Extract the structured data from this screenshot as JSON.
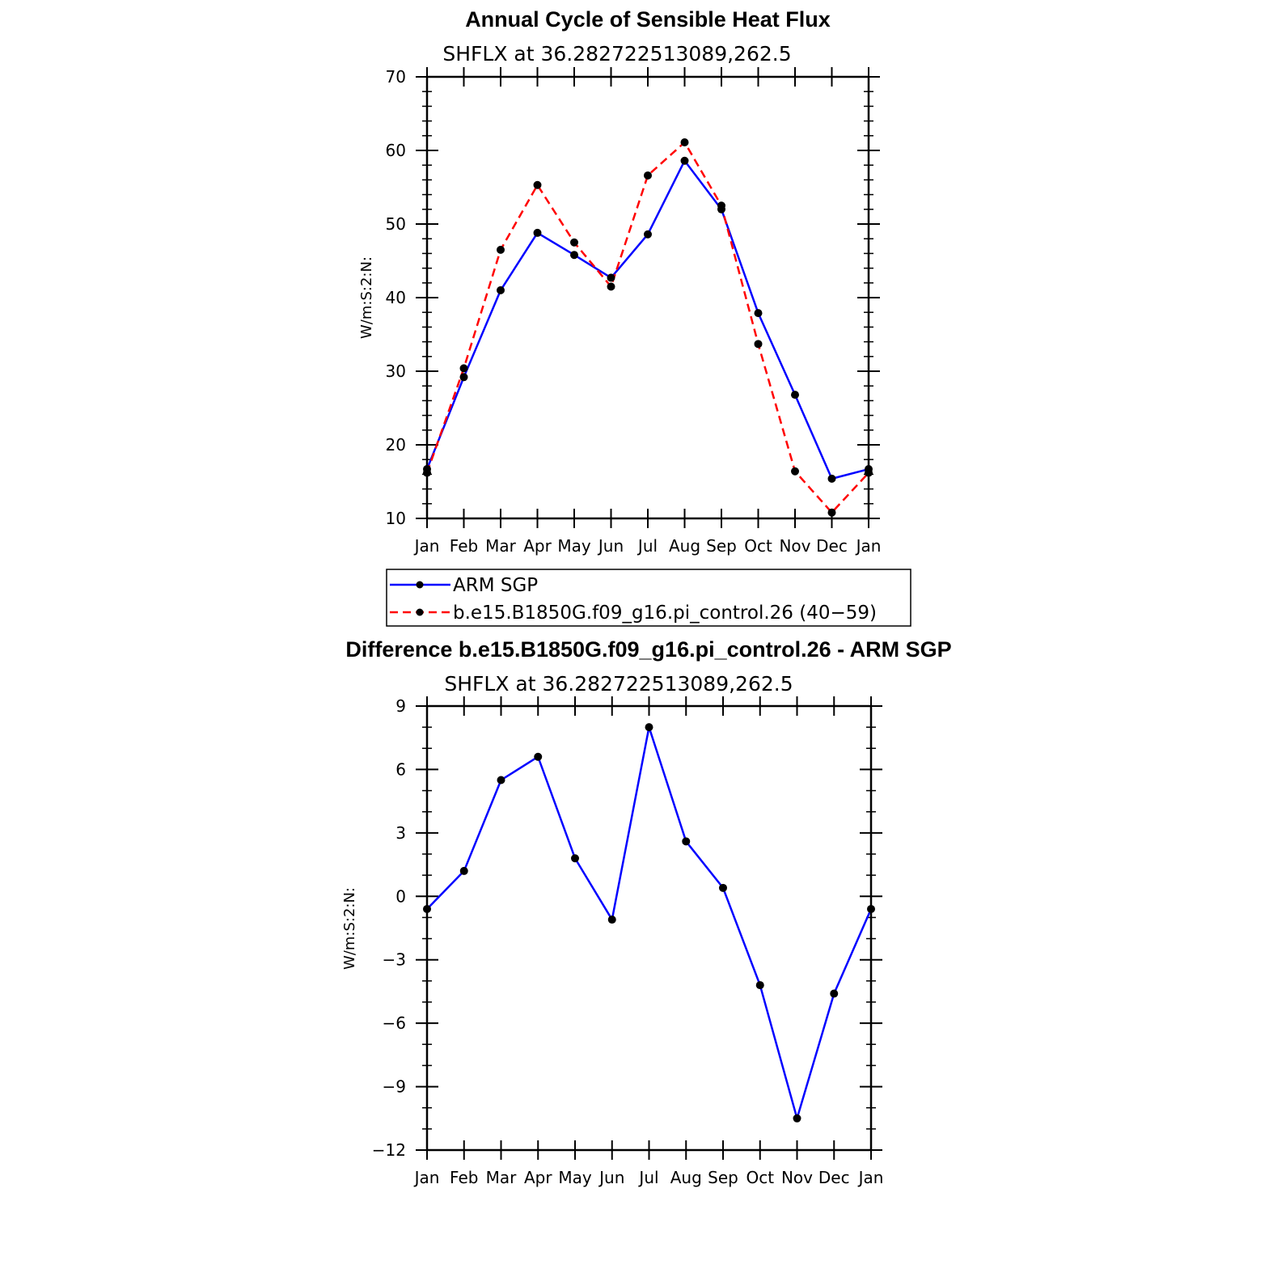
{
  "chart_data": [
    {
      "type": "line",
      "title": "Annual Cycle of Sensible Heat Flux",
      "subtitle": "SHFLX at 36.282722513089,262.5",
      "ylabel": "W/m:S:2:N:",
      "xlabel": "",
      "categories": [
        "Jan",
        "Feb",
        "Mar",
        "Apr",
        "May",
        "Jun",
        "Jul",
        "Aug",
        "Sep",
        "Oct",
        "Nov",
        "Dec",
        "Jan"
      ],
      "ylim": [
        10,
        70
      ],
      "yticks": [
        "70",
        "60",
        "50",
        "40",
        "30",
        "20",
        "10"
      ],
      "ytick_values": [
        70,
        60,
        50,
        40,
        30,
        20,
        10
      ],
      "series": [
        {
          "name": "ARM SGP",
          "color": "#0000ff",
          "dash": "solid",
          "values": [
            16.7,
            29.2,
            41.0,
            48.8,
            45.8,
            42.7,
            48.6,
            58.6,
            52.0,
            37.9,
            26.8,
            15.4,
            16.7
          ]
        },
        {
          "name": "b.e15.B1850G.f09_g16.pi_control.26 (40−59)",
          "color": "#ff0000",
          "dash": "dashed",
          "values": [
            16.2,
            30.4,
            46.5,
            55.3,
            47.5,
            41.5,
            56.6,
            61.1,
            52.5,
            33.7,
            16.4,
            10.8,
            16.2
          ]
        }
      ]
    },
    {
      "type": "line",
      "title": "Difference b.e15.B1850G.f09_g16.pi_control.26 - ARM SGP",
      "subtitle": "SHFLX at 36.282722513089,262.5",
      "ylabel": "W/m:S:2:N:",
      "xlabel": "",
      "categories": [
        "Jan",
        "Feb",
        "Mar",
        "Apr",
        "May",
        "Jun",
        "Jul",
        "Aug",
        "Sep",
        "Oct",
        "Nov",
        "Dec",
        "Jan"
      ],
      "ylim": [
        -12,
        9
      ],
      "yticks": [
        "9",
        "6",
        "3",
        "0",
        "−3",
        "−6",
        "−9",
        "−12"
      ],
      "ytick_values": [
        9,
        6,
        3,
        0,
        -3,
        -6,
        -9,
        -12
      ],
      "series": [
        {
          "name": "Difference",
          "color": "#0000ff",
          "dash": "solid",
          "values": [
            -0.6,
            1.2,
            5.5,
            6.6,
            1.8,
            -1.1,
            8.0,
            2.6,
            0.4,
            -4.2,
            -10.5,
            -4.6,
            -0.6
          ]
        }
      ]
    }
  ]
}
